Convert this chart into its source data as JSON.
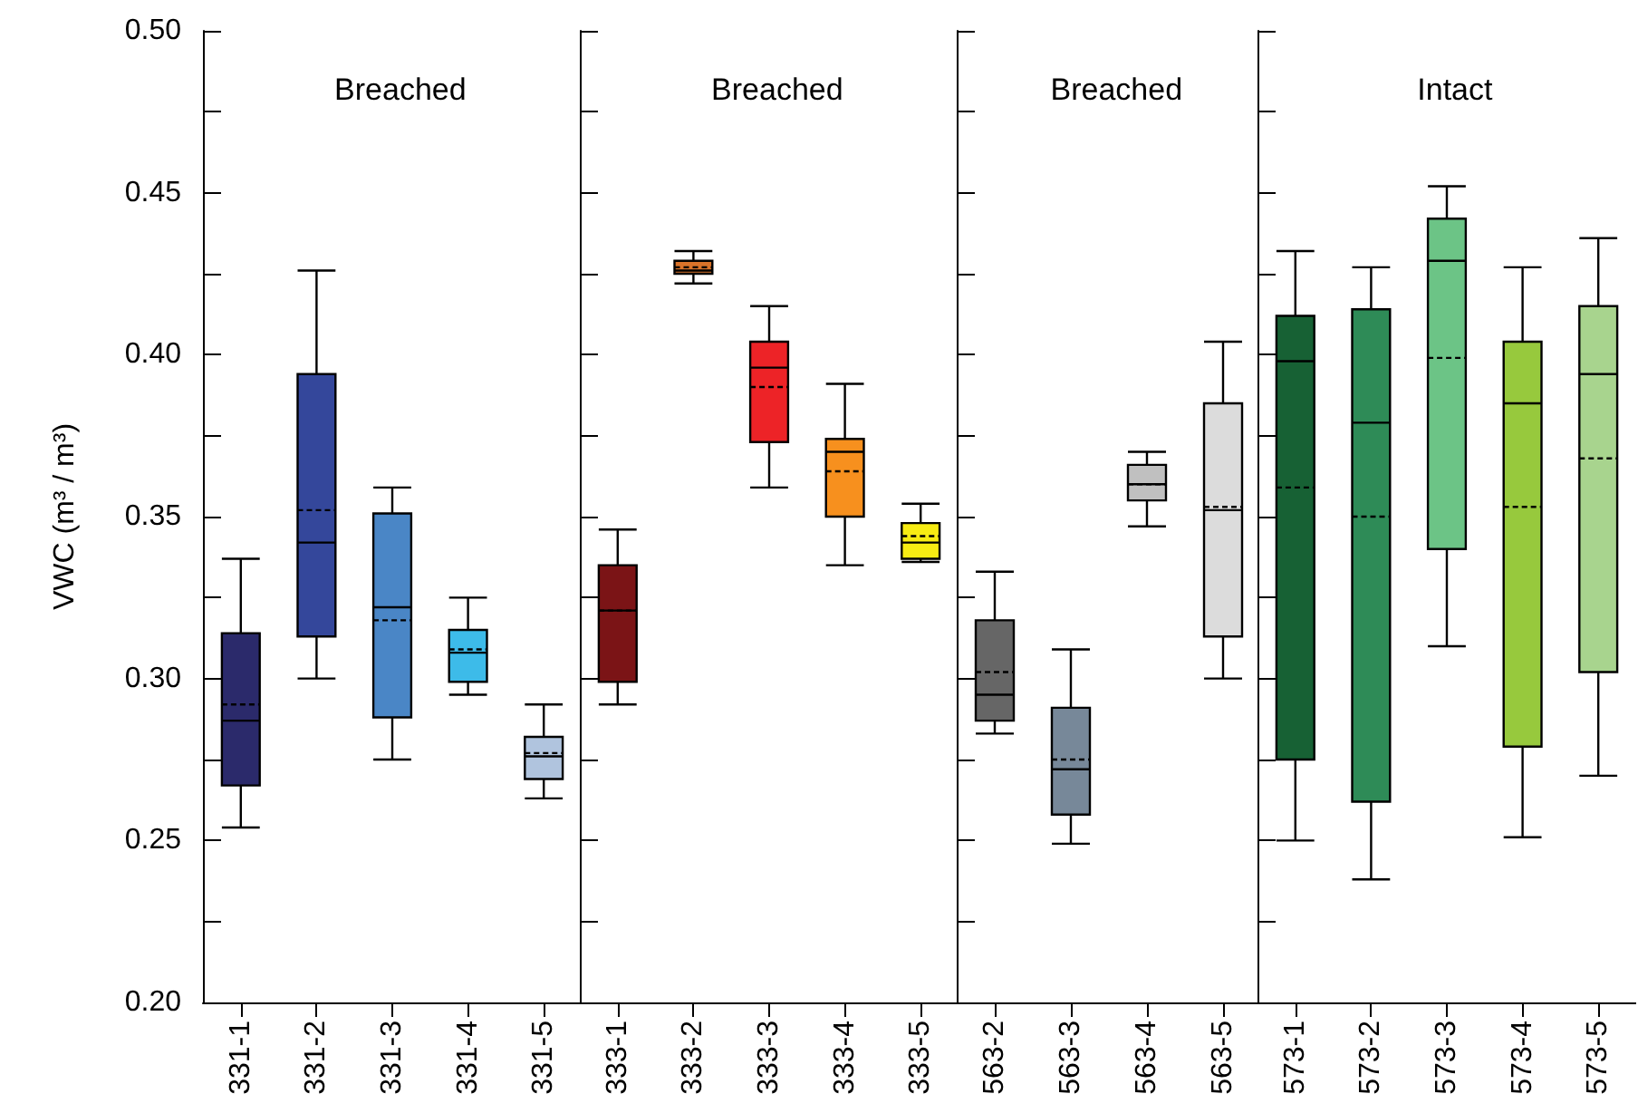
{
  "chart_data": [
    {
      "type": "box",
      "title": "Breached",
      "ylabel": "VWC (m³ / m³)",
      "categories": [
        "331-1",
        "331-2",
        "331-3",
        "331-4",
        "331-5"
      ],
      "colors": [
        "#2b2a6b",
        "#34479b",
        "#4a86c6",
        "#3dbbe9",
        "#b0c4de"
      ],
      "boxes": [
        {
          "low": 0.254,
          "q1": 0.267,
          "median": 0.287,
          "q3": 0.314,
          "high": 0.337,
          "mean": 0.292
        },
        {
          "low": 0.3,
          "q1": 0.313,
          "median": 0.342,
          "q3": 0.394,
          "high": 0.426,
          "mean": 0.352
        },
        {
          "low": 0.275,
          "q1": 0.288,
          "median": 0.322,
          "q3": 0.351,
          "high": 0.359,
          "mean": 0.318
        },
        {
          "low": 0.295,
          "q1": 0.299,
          "median": 0.308,
          "q3": 0.315,
          "high": 0.325,
          "mean": 0.309
        },
        {
          "low": 0.263,
          "q1": 0.269,
          "median": 0.276,
          "q3": 0.282,
          "high": 0.292,
          "mean": 0.277
        }
      ],
      "ylim": [
        0.2,
        0.5
      ],
      "yticks": [
        {
          "value": 0.2,
          "label": "0.20"
        },
        {
          "value": 0.225,
          "label": null
        },
        {
          "value": 0.25,
          "label": "0.25"
        },
        {
          "value": 0.275,
          "label": null
        },
        {
          "value": 0.3,
          "label": "0.30"
        },
        {
          "value": 0.325,
          "label": null
        },
        {
          "value": 0.35,
          "label": "0.35"
        },
        {
          "value": 0.375,
          "label": null
        },
        {
          "value": 0.4,
          "label": "0.40"
        },
        {
          "value": 0.425,
          "label": null
        },
        {
          "value": 0.45,
          "label": "0.45"
        },
        {
          "value": 0.475,
          "label": null
        },
        {
          "value": 0.5,
          "label": "0.50"
        }
      ]
    },
    {
      "type": "box",
      "title": "Breached",
      "categories": [
        "333-1",
        "333-2",
        "333-3",
        "333-4",
        "333-5"
      ],
      "colors": [
        "#7b1416",
        "#d9732a",
        "#ed2327",
        "#f7901e",
        "#f7ec13"
      ],
      "boxes": [
        {
          "low": 0.292,
          "q1": 0.299,
          "median": 0.321,
          "q3": 0.335,
          "high": 0.346,
          "mean": 0.321
        },
        {
          "low": 0.422,
          "q1": 0.425,
          "median": 0.426,
          "q3": 0.429,
          "high": 0.432,
          "mean": 0.427
        },
        {
          "low": 0.359,
          "q1": 0.373,
          "median": 0.396,
          "q3": 0.404,
          "high": 0.415,
          "mean": 0.39
        },
        {
          "low": 0.335,
          "q1": 0.35,
          "median": 0.37,
          "q3": 0.374,
          "high": 0.391,
          "mean": 0.364
        },
        {
          "low": 0.336,
          "q1": 0.337,
          "median": 0.342,
          "q3": 0.348,
          "high": 0.354,
          "mean": 0.344
        }
      ],
      "ylim": [
        0.2,
        0.5
      ],
      "tick_labels": "x"
    },
    {
      "type": "box",
      "title": "Breached",
      "categories": [
        "563-2",
        "563-3",
        "563-4",
        "563-5"
      ],
      "colors": [
        "#666666",
        "#778899",
        "#c0c0c0",
        "#dcdcdc"
      ],
      "boxes": [
        {
          "low": 0.283,
          "q1": 0.287,
          "median": 0.295,
          "q3": 0.318,
          "high": 0.333,
          "mean": 0.302
        },
        {
          "low": 0.249,
          "q1": 0.258,
          "median": 0.272,
          "q3": 0.291,
          "high": 0.309,
          "mean": 0.275
        },
        {
          "low": 0.347,
          "q1": 0.355,
          "median": 0.36,
          "q3": 0.366,
          "high": 0.37,
          "mean": 0.36
        },
        {
          "low": 0.3,
          "q1": 0.313,
          "median": 0.352,
          "q3": 0.385,
          "high": 0.404,
          "mean": 0.353
        }
      ],
      "ylim": [
        0.2,
        0.5
      ],
      "tick_labels": "x"
    },
    {
      "type": "box",
      "title": "Intact",
      "categories": [
        "573-1",
        "573-2",
        "573-3",
        "573-4",
        "573-5"
      ],
      "colors": [
        "#176134",
        "#2e8b57",
        "#6cc486",
        "#97c93d",
        "#a8d48e"
      ],
      "boxes": [
        {
          "low": 0.25,
          "q1": 0.275,
          "median": 0.398,
          "q3": 0.412,
          "high": 0.432,
          "mean": 0.359
        },
        {
          "low": 0.238,
          "q1": 0.262,
          "median": 0.379,
          "q3": 0.414,
          "high": 0.427,
          "mean": 0.35
        },
        {
          "low": 0.31,
          "q1": 0.34,
          "median": 0.429,
          "q3": 0.442,
          "high": 0.452,
          "mean": 0.399
        },
        {
          "low": 0.251,
          "q1": 0.279,
          "median": 0.385,
          "q3": 0.404,
          "high": 0.427,
          "mean": 0.353
        },
        {
          "low": 0.27,
          "q1": 0.302,
          "median": 0.394,
          "q3": 0.415,
          "high": 0.436,
          "mean": 0.368
        }
      ],
      "ylim": [
        0.2,
        0.5
      ],
      "tick_labels": "x"
    }
  ]
}
